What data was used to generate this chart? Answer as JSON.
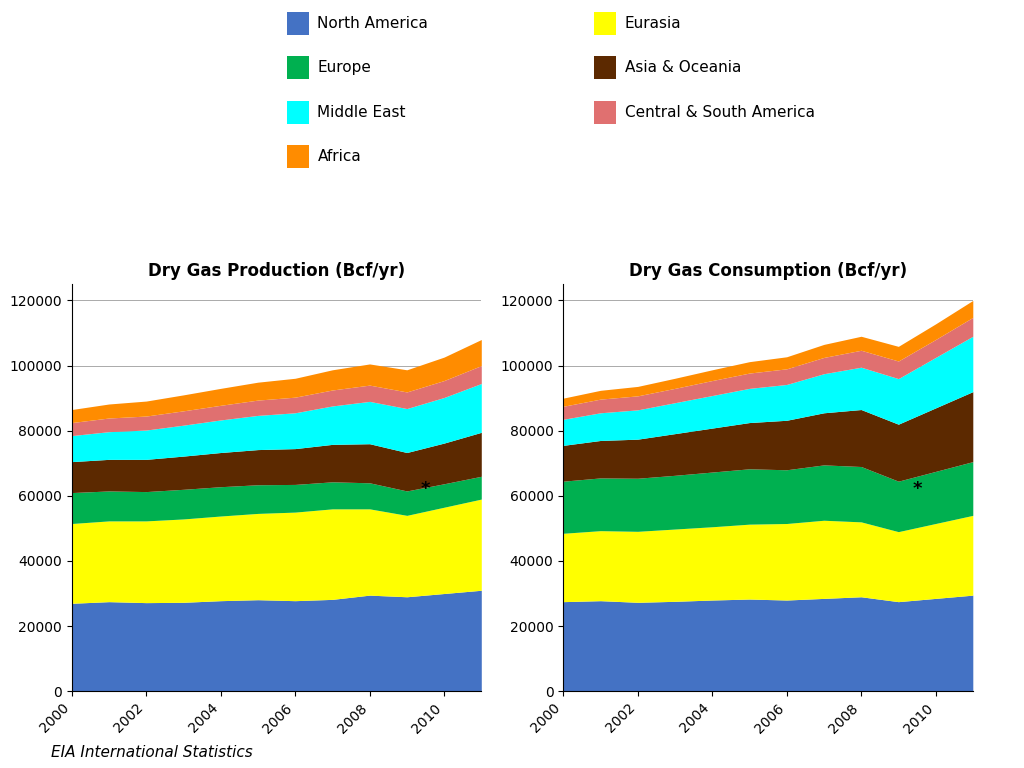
{
  "years": [
    2000,
    2001,
    2002,
    2003,
    2004,
    2005,
    2006,
    2007,
    2008,
    2009,
    2010,
    2011
  ],
  "production": {
    "North America": [
      27000,
      27500,
      27200,
      27300,
      27800,
      28100,
      27800,
      28200,
      29500,
      29000,
      30000,
      31000
    ],
    "Eurasia": [
      24500,
      24800,
      25100,
      25600,
      26000,
      26500,
      27200,
      27800,
      26500,
      25000,
      26500,
      28000
    ],
    "Europe": [
      9500,
      9200,
      9000,
      9100,
      9000,
      8800,
      8500,
      8300,
      8000,
      7500,
      7200,
      7000
    ],
    "Asia & Oceania": [
      9500,
      9700,
      9900,
      10200,
      10500,
      10800,
      11000,
      11500,
      12000,
      11800,
      12500,
      13500
    ],
    "Middle East": [
      8000,
      8500,
      9000,
      9500,
      10000,
      10500,
      11000,
      11800,
      13000,
      13500,
      14000,
      15000
    ],
    "Central & South America": [
      4000,
      4200,
      4300,
      4400,
      4500,
      4700,
      4800,
      4900,
      5000,
      5100,
      5200,
      5500
    ],
    "Africa": [
      4000,
      4300,
      4600,
      4900,
      5200,
      5500,
      5800,
      6200,
      6500,
      6800,
      7200,
      8000
    ]
  },
  "consumption": {
    "North America": [
      27500,
      27800,
      27300,
      27600,
      28000,
      28300,
      28000,
      28500,
      29000,
      27500,
      28500,
      29500
    ],
    "Eurasia": [
      21000,
      21500,
      21800,
      22200,
      22500,
      23000,
      23500,
      24000,
      23000,
      21500,
      23000,
      24500
    ],
    "Europe": [
      16000,
      16200,
      16300,
      16500,
      16800,
      17000,
      16500,
      17000,
      17000,
      15500,
      16000,
      16500
    ],
    "Asia & Oceania": [
      11000,
      11500,
      12000,
      12800,
      13500,
      14200,
      15200,
      16000,
      17500,
      17500,
      19500,
      21500
    ],
    "Middle East": [
      8000,
      8500,
      9000,
      9500,
      10000,
      10500,
      11000,
      12000,
      13000,
      14000,
      15500,
      17000
    ],
    "Central & South America": [
      4000,
      4200,
      4300,
      4400,
      4600,
      4700,
      4800,
      5000,
      5200,
      5400,
      5500,
      5800
    ],
    "Africa": [
      2500,
      2700,
      2900,
      3100,
      3300,
      3500,
      3700,
      4000,
      4300,
      4500,
      4800,
      5200
    ]
  },
  "colors": {
    "North America": "#4472C4",
    "Eurasia": "#FFFF00",
    "Europe": "#00B050",
    "Asia & Oceania": "#5C2900",
    "Middle East": "#00FFFF",
    "Central & South America": "#E07070",
    "Africa": "#FF8C00"
  },
  "stack_order": [
    "North America",
    "Eurasia",
    "Europe",
    "Asia & Oceania",
    "Middle East",
    "Central & South America",
    "Africa"
  ],
  "legend_col1": [
    "North America",
    "Europe",
    "Middle East",
    "Africa"
  ],
  "legend_col2": [
    "Eurasia",
    "Asia & Oceania",
    "Central & South America"
  ],
  "title_production": "Dry Gas Production (Bcf/yr)",
  "title_consumption": "Dry Gas Consumption (Bcf/yr)",
  "footer": "EIA International Statistics",
  "ylim": [
    0,
    125000
  ],
  "yticks": [
    0,
    20000,
    40000,
    60000,
    80000,
    100000,
    120000
  ],
  "xtick_years": [
    2000,
    2002,
    2004,
    2006,
    2008,
    2010
  ],
  "asterisk_x": 2009.5,
  "asterisk_y": 62000
}
